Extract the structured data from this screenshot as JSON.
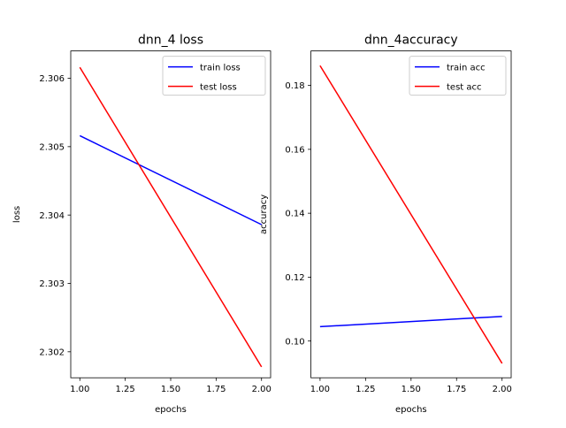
{
  "chart_data": [
    {
      "type": "line",
      "title": "dnn_4 loss",
      "xlabel": "epochs",
      "ylabel": "loss",
      "xlim": [
        0.95,
        2.05
      ],
      "ylim": [
        2.30162,
        2.3064
      ],
      "xticks": [
        1.0,
        1.25,
        1.5,
        1.75,
        2.0
      ],
      "xtick_labels": [
        "1.00",
        "1.25",
        "1.50",
        "1.75",
        "2.00"
      ],
      "yticks": [
        2.302,
        2.303,
        2.304,
        2.305,
        2.306
      ],
      "ytick_labels": [
        "2.302",
        "2.303",
        "2.304",
        "2.305",
        "2.306"
      ],
      "grid": false,
      "legend_position": "upper right",
      "series": [
        {
          "name": "train loss",
          "color": "#0000ff",
          "x": [
            1,
            2
          ],
          "y": [
            2.30516,
            2.30386
          ]
        },
        {
          "name": "test loss",
          "color": "#ff0000",
          "x": [
            1,
            2
          ],
          "y": [
            2.30616,
            2.30178
          ]
        }
      ]
    },
    {
      "type": "line",
      "title": "dnn_4accuracy",
      "xlabel": "epochs",
      "ylabel": "accuracy",
      "xlim": [
        0.95,
        2.05
      ],
      "ylim": [
        0.0885,
        0.1908
      ],
      "xticks": [
        1.0,
        1.25,
        1.5,
        1.75,
        2.0
      ],
      "xtick_labels": [
        "1.00",
        "1.25",
        "1.50",
        "1.75",
        "2.00"
      ],
      "yticks": [
        0.1,
        0.12,
        0.14,
        0.16,
        0.18
      ],
      "ytick_labels": [
        "0.10",
        "0.12",
        "0.14",
        "0.16",
        "0.18"
      ],
      "grid": false,
      "legend_position": "upper right",
      "series": [
        {
          "name": "train acc",
          "color": "#0000ff",
          "x": [
            1,
            2
          ],
          "y": [
            0.1045,
            0.1077
          ]
        },
        {
          "name": "test acc",
          "color": "#ff0000",
          "x": [
            1,
            2
          ],
          "y": [
            0.1862,
            0.093
          ]
        }
      ]
    }
  ]
}
